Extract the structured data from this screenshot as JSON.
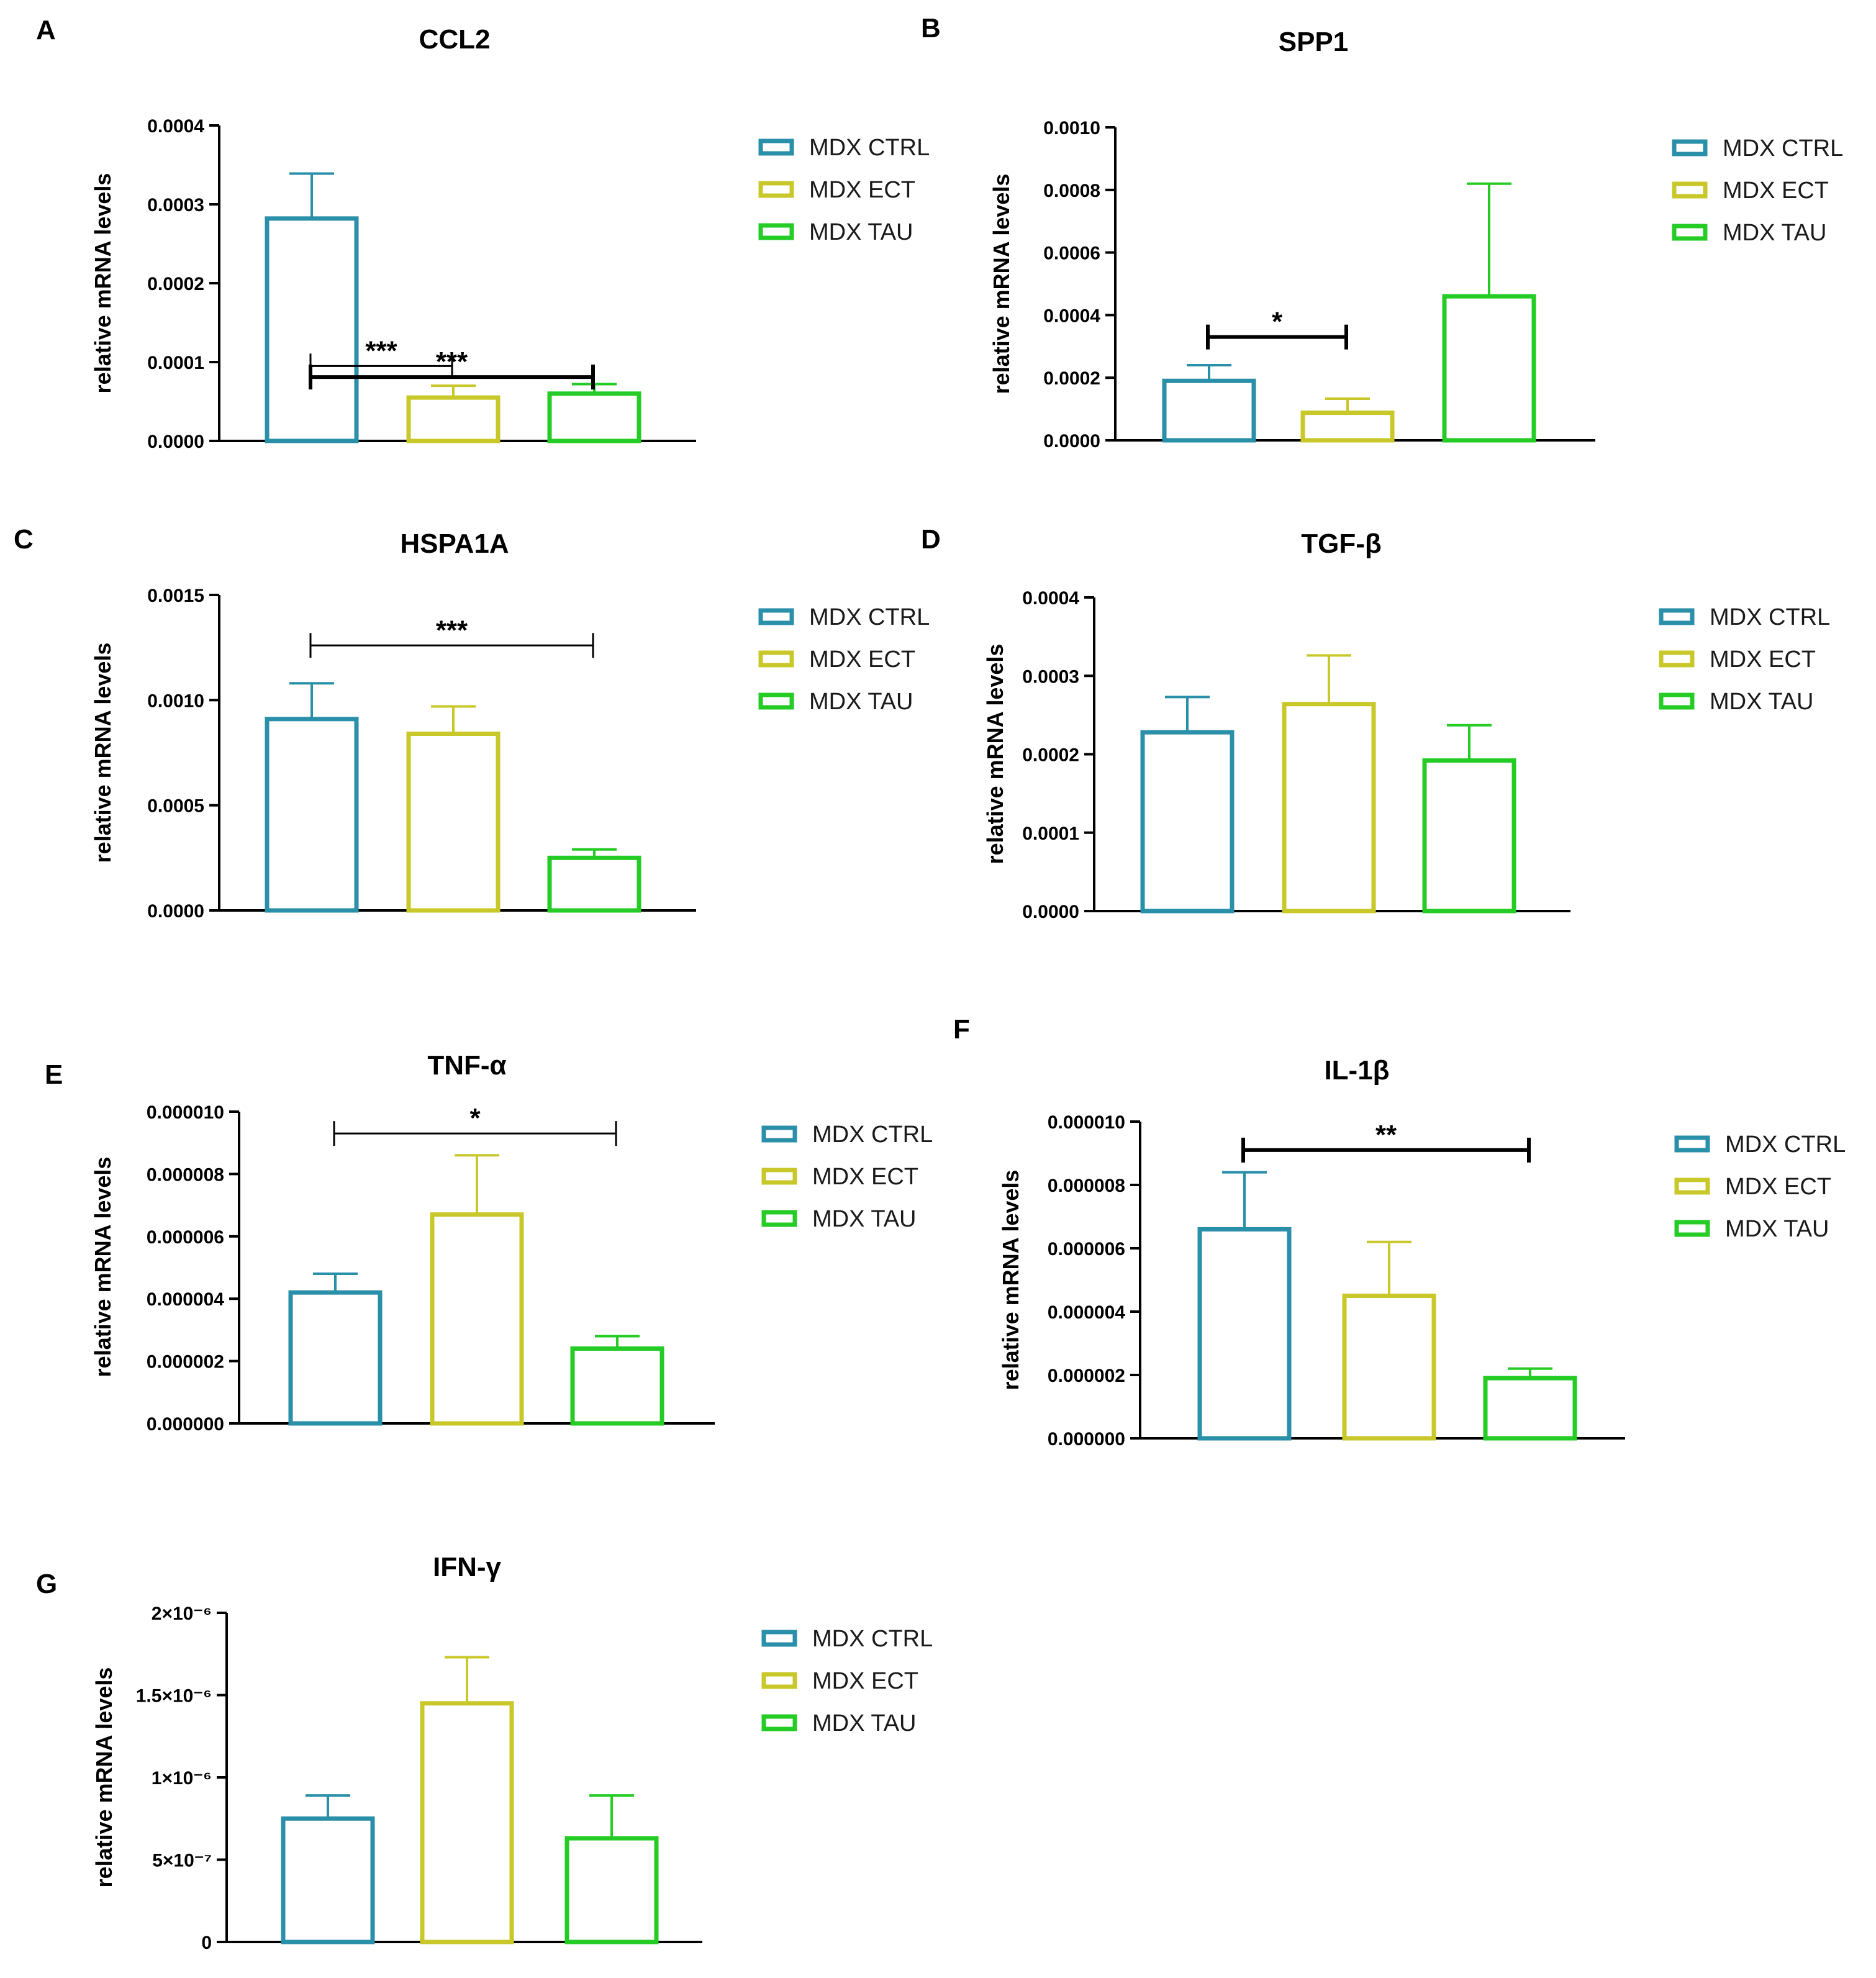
{
  "colors": {
    "ctrl": "#2a8fa8",
    "ect": "#c9c82a",
    "tau": "#25cc25"
  },
  "legend": [
    "MDX CTRL",
    "MDX ECT",
    "MDX TAU"
  ],
  "chart_data": [
    {
      "panel": "A",
      "type": "bar",
      "title": "CCL2",
      "ylabel": "relative mRNA levels",
      "categories": [
        "MDX CTRL",
        "MDX ECT",
        "MDX TAU"
      ],
      "values": [
        0.000282,
        5.5e-05,
        6e-05
      ],
      "errors": [
        5.7e-05,
        1.5e-05,
        1.2e-05
      ],
      "ylim": [
        0,
        0.0004
      ],
      "yticks": [
        "0.0000",
        "0.0001",
        "0.0002",
        "0.0003",
        "0.0004"
      ],
      "significance": [
        {
          "from": 0,
          "to": 1,
          "label": "***",
          "level": 9.5e-05,
          "style": "thin-cap"
        },
        {
          "from": 0,
          "to": 2,
          "label": "***",
          "level": 8.1e-05,
          "style": "thick"
        }
      ]
    },
    {
      "panel": "B",
      "type": "bar",
      "title": "SPP1",
      "ylabel": "relative mRNA levels",
      "categories": [
        "MDX CTRL",
        "MDX ECT",
        "MDX TAU"
      ],
      "values": [
        0.00019,
        8.8e-05,
        0.00046
      ],
      "errors": [
        5e-05,
        4.5e-05,
        0.00036
      ],
      "ylim": [
        0,
        0.001
      ],
      "yticks": [
        "0.0000",
        "0.0002",
        "0.0004",
        "0.0006",
        "0.0008",
        "0.0010"
      ],
      "significance": [
        {
          "from": 0,
          "to": 1,
          "label": "*",
          "level": 0.00033,
          "style": "thick"
        }
      ]
    },
    {
      "panel": "C",
      "type": "bar",
      "title": "HSPA1A",
      "ylabel": "relative mRNA levels",
      "categories": [
        "MDX CTRL",
        "MDX ECT",
        "MDX TAU"
      ],
      "values": [
        0.00091,
        0.00084,
        0.00025
      ],
      "errors": [
        0.00017,
        0.00013,
        4e-05
      ],
      "ylim": [
        0,
        0.0015
      ],
      "yticks": [
        "0.0000",
        "0.0005",
        "0.0010",
        "0.0015"
      ],
      "significance": [
        {
          "from": 0,
          "to": 2,
          "label": "***",
          "level": 0.00126,
          "style": "thin"
        }
      ]
    },
    {
      "panel": "D",
      "type": "bar",
      "title": "TGF-β",
      "ylabel": "relative mRNA levels",
      "categories": [
        "MDX CTRL",
        "MDX ECT",
        "MDX TAU"
      ],
      "values": [
        0.000228,
        0.000264,
        0.000192
      ],
      "errors": [
        4.5e-05,
        6.2e-05,
        4.5e-05
      ],
      "ylim": [
        0,
        0.0004
      ],
      "yticks": [
        "0.0000",
        "0.0001",
        "0.0002",
        "0.0003",
        "0.0004"
      ],
      "significance": []
    },
    {
      "panel": "E",
      "type": "bar",
      "title": "TNF-α",
      "ylabel": "relative mRNA levels",
      "categories": [
        "MDX CTRL",
        "MDX ECT",
        "MDX TAU"
      ],
      "values": [
        4.2e-06,
        6.7e-06,
        2.4e-06
      ],
      "errors": [
        6e-07,
        1.9e-06,
        4e-07
      ],
      "ylim": [
        0,
        1e-05
      ],
      "yticks": [
        "0.000000",
        "0.000002",
        "0.000004",
        "0.000006",
        "0.000008",
        "0.000010"
      ],
      "significance": [
        {
          "from": 0,
          "to": 2,
          "label": "*",
          "level": 9.3e-06,
          "style": "thin"
        }
      ]
    },
    {
      "panel": "F",
      "type": "bar",
      "title": "IL-1β",
      "ylabel": "relative mRNA levels",
      "categories": [
        "MDX CTRL",
        "MDX ECT",
        "MDX TAU"
      ],
      "values": [
        6.6e-06,
        4.5e-06,
        1.9e-06
      ],
      "errors": [
        1.8e-06,
        1.7e-06,
        3e-07
      ],
      "ylim": [
        0,
        1e-05
      ],
      "yticks": [
        "0.000000",
        "0.000002",
        "0.000004",
        "0.000006",
        "0.000008",
        "0.000010"
      ],
      "significance": [
        {
          "from": 0,
          "to": 2,
          "label": "**",
          "level": 9.1e-06,
          "style": "thick"
        }
      ]
    },
    {
      "panel": "G",
      "type": "bar",
      "title": "IFN-γ",
      "ylabel": "relative mRNA levels",
      "categories": [
        "MDX CTRL",
        "MDX ECT",
        "MDX TAU"
      ],
      "values": [
        7.5e-07,
        1.45e-06,
        6.3e-07
      ],
      "errors": [
        1.4e-07,
        2.8e-07,
        2.6e-07
      ],
      "ylim": [
        0,
        2e-06
      ],
      "yticks": [
        "0",
        "5×10⁻⁷",
        "1×10⁻⁶",
        "1.5×10⁻⁶",
        "2×10⁻⁶"
      ],
      "significance": []
    }
  ]
}
